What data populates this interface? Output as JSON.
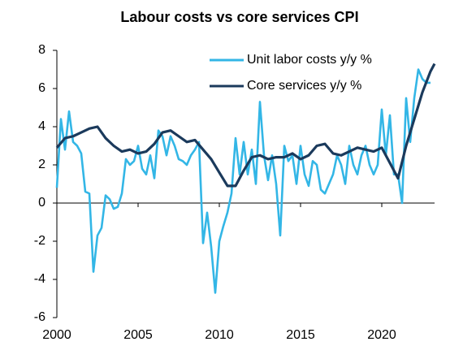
{
  "chart_data": {
    "type": "line",
    "title": "Labour costs vs core services CPI",
    "xlim": [
      2000,
      2023.25
    ],
    "xticks": [
      2000,
      2005,
      2010,
      2015,
      2020
    ],
    "ylim": [
      -6,
      8
    ],
    "yticks": [
      -6,
      -4,
      -2,
      0,
      2,
      4,
      6,
      8
    ],
    "series": [
      {
        "name": "Unit labor costs y/y %",
        "color": "#33b6e6",
        "x": [
          2000,
          2000.25,
          2000.5,
          2000.75,
          2001,
          2001.25,
          2001.5,
          2001.75,
          2002,
          2002.25,
          2002.5,
          2002.75,
          2003,
          2003.25,
          2003.5,
          2003.75,
          2004,
          2004.25,
          2004.5,
          2004.75,
          2005,
          2005.25,
          2005.5,
          2005.75,
          2006,
          2006.25,
          2006.5,
          2006.75,
          2007,
          2007.25,
          2007.5,
          2007.75,
          2008,
          2008.25,
          2008.5,
          2008.75,
          2009,
          2009.25,
          2009.5,
          2009.75,
          2010,
          2010.25,
          2010.5,
          2010.75,
          2011,
          2011.25,
          2011.5,
          2011.75,
          2012,
          2012.25,
          2012.5,
          2012.75,
          2013,
          2013.25,
          2013.5,
          2013.75,
          2014,
          2014.25,
          2014.5,
          2014.75,
          2015,
          2015.25,
          2015.5,
          2015.75,
          2016,
          2016.25,
          2016.5,
          2016.75,
          2017,
          2017.25,
          2017.5,
          2017.75,
          2018,
          2018.25,
          2018.5,
          2018.75,
          2019,
          2019.25,
          2019.5,
          2019.75,
          2020,
          2020.25,
          2020.5,
          2020.75,
          2021,
          2021.25,
          2021.5,
          2021.75,
          2022,
          2022.25,
          2022.5,
          2022.75,
          2023
        ],
        "values": [
          0.8,
          4.4,
          2.8,
          4.8,
          3.2,
          3.0,
          2.6,
          0.6,
          0.5,
          -3.6,
          -1.7,
          -1.3,
          0.4,
          0.2,
          -0.3,
          -0.2,
          0.5,
          2.3,
          2.0,
          2.2,
          3.0,
          1.8,
          1.5,
          2.5,
          1.3,
          3.8,
          3.5,
          2.5,
          3.5,
          3.0,
          2.3,
          2.2,
          2.0,
          2.5,
          2.8,
          3.2,
          -2.1,
          -0.5,
          -2.3,
          -4.7,
          -2.0,
          -1.2,
          -0.5,
          0.5,
          3.4,
          1.5,
          3.2,
          1.5,
          2.8,
          1.0,
          5.3,
          2.5,
          1.2,
          2.5,
          1.0,
          -1.7,
          3.0,
          2.2,
          2.5,
          1.0,
          3.0,
          1.5,
          0.9,
          2.2,
          2.0,
          0.7,
          0.5,
          1.0,
          1.5,
          2.5,
          2.0,
          1.0,
          3.0,
          2.0,
          1.5,
          2.5,
          3.0,
          2.0,
          1.5,
          2.0,
          4.9,
          2.5,
          4.6,
          1.5,
          1.5,
          0.0,
          5.5,
          3.2,
          5.5,
          7.0,
          6.5,
          6.3,
          6.3
        ]
      },
      {
        "name": "Core services y/y %",
        "color": "#1b3a5c",
        "x": [
          2000,
          2000.5,
          2001,
          2001.5,
          2002,
          2002.5,
          2003,
          2003.5,
          2004,
          2004.5,
          2005,
          2005.5,
          2006,
          2006.5,
          2007,
          2007.5,
          2008,
          2008.5,
          2009,
          2009.5,
          2010,
          2010.5,
          2011,
          2011.5,
          2012,
          2012.5,
          2013,
          2013.5,
          2014,
          2014.5,
          2015,
          2015.5,
          2016,
          2016.5,
          2017,
          2017.5,
          2018,
          2018.5,
          2019,
          2019.5,
          2020,
          2020.5,
          2021,
          2021.5,
          2022,
          2022.5,
          2023,
          2023.25
        ],
        "values": [
          2.9,
          3.4,
          3.5,
          3.7,
          3.9,
          4.0,
          3.4,
          3.0,
          2.7,
          2.8,
          2.6,
          2.7,
          3.1,
          3.7,
          3.8,
          3.5,
          3.2,
          3.3,
          2.8,
          2.3,
          1.6,
          0.9,
          0.9,
          1.7,
          2.4,
          2.5,
          2.3,
          2.4,
          2.4,
          2.6,
          2.3,
          2.5,
          3.0,
          3.1,
          2.6,
          2.5,
          2.7,
          2.9,
          2.8,
          2.7,
          2.9,
          2.1,
          1.3,
          3.0,
          4.4,
          5.8,
          6.9,
          7.3
        ]
      }
    ]
  }
}
